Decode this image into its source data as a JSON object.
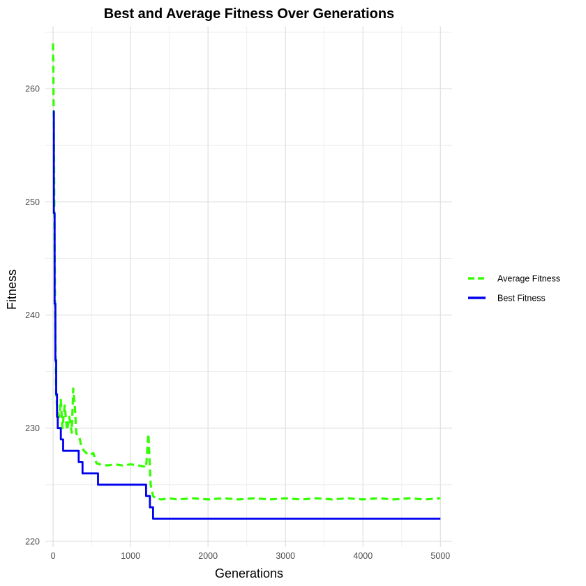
{
  "chart_data": {
    "type": "line",
    "title": "Best and Average Fitness Over Generations",
    "xlabel": "Generations",
    "ylabel": "Fitness",
    "xlim": [
      -100,
      5150
    ],
    "ylim": [
      219.5,
      265.5
    ],
    "xticks": [
      0,
      1000,
      2000,
      3000,
      4000,
      5000
    ],
    "xtick_labels": [
      "0",
      "1000",
      "2000",
      "3000",
      "4000",
      "5000"
    ],
    "yticks": [
      220,
      230,
      240,
      250,
      260
    ],
    "ytick_labels": [
      "220",
      "230",
      "240",
      "250",
      "260"
    ],
    "grid": true,
    "legend_position": "right",
    "series": [
      {
        "name": "Average Fitness",
        "color": "#33ff00",
        "style": "dashed",
        "x": [
          0,
          10,
          20,
          30,
          40,
          50,
          60,
          80,
          100,
          120,
          150,
          180,
          210,
          240,
          260,
          280,
          300,
          320,
          340,
          360,
          380,
          400,
          430,
          470,
          520,
          560,
          600,
          700,
          800,
          900,
          1000,
          1100,
          1180,
          1200,
          1230,
          1260,
          1290,
          1320,
          1400,
          1500,
          1600,
          1800,
          2000,
          2200,
          2400,
          2600,
          2800,
          3000,
          3200,
          3400,
          3600,
          3800,
          4000,
          4200,
          4400,
          4600,
          4800,
          5000
        ],
        "y": [
          264,
          256,
          246,
          238,
          233,
          232,
          231.5,
          231,
          232.5,
          230,
          232,
          229.8,
          231,
          229.6,
          233.5,
          232,
          229.5,
          229.4,
          229.2,
          228.5,
          228.2,
          228,
          227.8,
          227.6,
          227.8,
          226.9,
          226.8,
          226.7,
          226.8,
          226.7,
          226.8,
          226.7,
          226.6,
          226.5,
          229.5,
          225,
          224,
          223.8,
          223.7,
          223.8,
          223.7,
          223.8,
          223.7,
          223.8,
          223.7,
          223.8,
          223.7,
          223.8,
          223.7,
          223.8,
          223.7,
          223.8,
          223.7,
          223.8,
          223.7,
          223.8,
          223.7,
          223.8
        ]
      },
      {
        "name": "Best Fitness",
        "color": "#0000ee",
        "style": "solid",
        "x": [
          0,
          10,
          20,
          30,
          40,
          50,
          60,
          70,
          100,
          130,
          300,
          330,
          380,
          550,
          580,
          1180,
          1200,
          1250,
          1290,
          5000
        ],
        "y": [
          258,
          249,
          241,
          236,
          233,
          231,
          230,
          230,
          229,
          228,
          228,
          227,
          226,
          226,
          225,
          225,
          224,
          223,
          222,
          222
        ]
      }
    ]
  }
}
